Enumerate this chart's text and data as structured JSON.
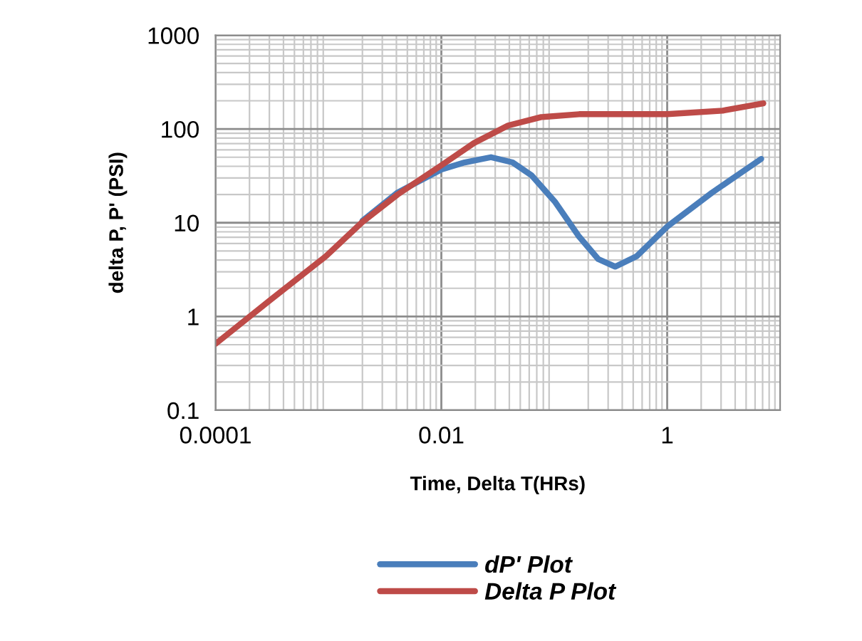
{
  "chart_data": {
    "type": "line",
    "xlabel": "Time, Delta T(HRs)",
    "ylabel": "delta P, P' (PSI)",
    "log": "xy",
    "xlim": [
      0.0001,
      10
    ],
    "ylim": [
      0.1,
      1000
    ],
    "xticks": [
      0.0001,
      0.01,
      1
    ],
    "yticks": [
      0.1,
      1,
      10,
      100,
      1000
    ],
    "grid": true,
    "legend": "bottom",
    "line_style": "solid",
    "marker": "none",
    "series": [
      {
        "name": "dP' Plot",
        "color": "#4a7ebb",
        "x": [
          0.002,
          0.0041,
          0.01,
          0.0161,
          0.0275,
          0.0427,
          0.063,
          0.102,
          0.166,
          0.245,
          0.346,
          0.537,
          1,
          2.5,
          6.8
        ],
        "values": [
          10.5,
          21,
          37,
          44,
          50,
          44,
          32,
          16.6,
          7.1,
          4.1,
          3.4,
          4.4,
          9.1,
          21,
          48
        ]
      },
      {
        "name": "Delta P Plot",
        "color": "#be4b48",
        "x": [
          0.0001,
          0.0003,
          0.00095,
          0.002,
          0.0041,
          0.01,
          0.0195,
          0.039,
          0.0766,
          0.166,
          1,
          3.1,
          7.1
        ],
        "values": [
          0.51,
          1.47,
          4.4,
          10.2,
          20,
          41,
          71,
          109,
          134,
          144,
          144,
          157,
          188
        ]
      }
    ]
  }
}
